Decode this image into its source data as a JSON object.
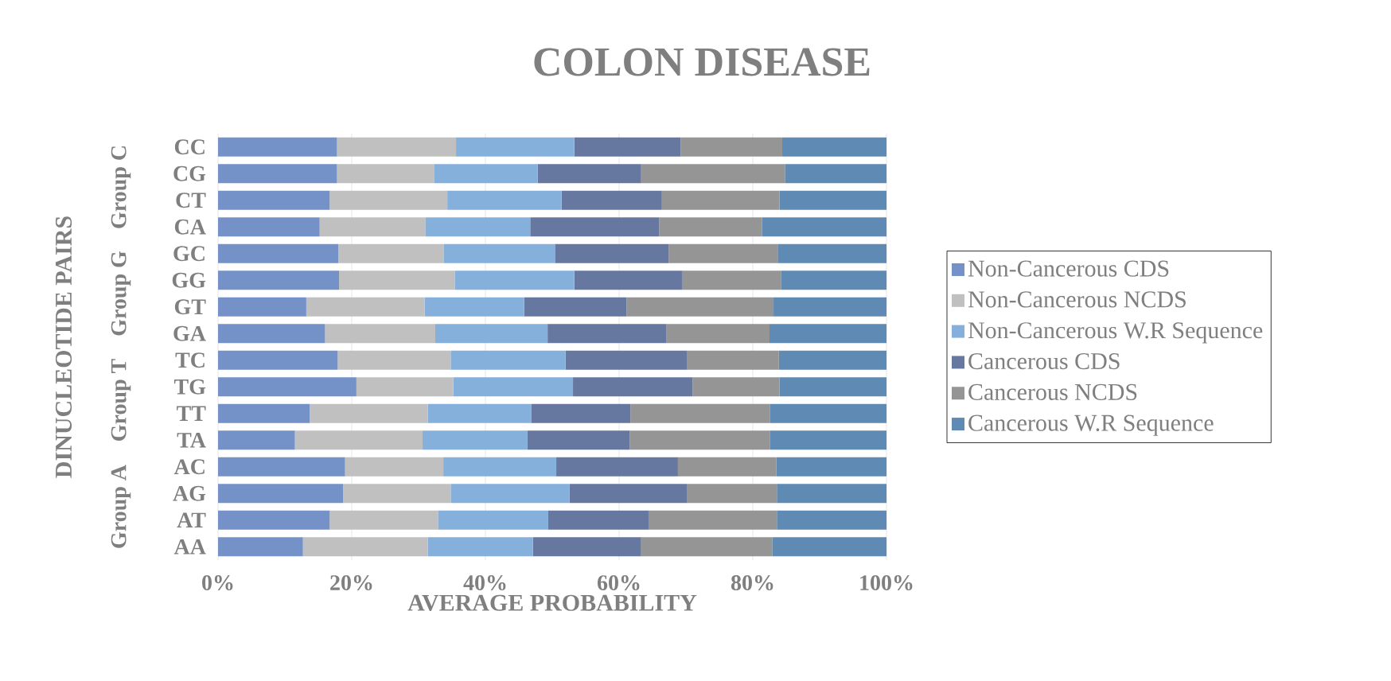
{
  "chart_data": {
    "type": "bar",
    "orientation": "horizontal",
    "stacked": true,
    "title": "COLON DISEASE",
    "xlabel": "AVERAGE PROBABILITY",
    "ylabel": "DINUCLEOTIDE PAIRS",
    "categories": [
      "CC",
      "CG",
      "CT",
      "CA",
      "GC",
      "GG",
      "GT",
      "GA",
      "TC",
      "TG",
      "TT",
      "TA",
      "AC",
      "AG",
      "AT",
      "AA"
    ],
    "annotations": [
      "Group C",
      "Group G",
      "Group T",
      "Group A"
    ],
    "xlim": [
      0,
      100
    ],
    "xticks": [
      {
        "value": 0,
        "label": "0%"
      },
      {
        "value": 20,
        "label": "20%"
      },
      {
        "value": 40,
        "label": "40%"
      },
      {
        "value": 60,
        "label": "60%"
      },
      {
        "value": 80,
        "label": "80%"
      },
      {
        "value": 100,
        "label": "100%"
      }
    ],
    "grid": "x",
    "legend": "right",
    "series": [
      {
        "name": "Non-Cancerous CDS",
        "color": "#7592c8",
        "values": [
          17.8,
          17.8,
          16.7,
          15.2,
          18.0,
          18.1,
          13.2,
          16.0,
          17.9,
          20.7,
          13.7,
          11.5,
          19.0,
          18.7,
          16.7,
          12.7
        ]
      },
      {
        "name": "Non-Cancerous NCDS",
        "color": "#c0c0c0",
        "values": [
          17.8,
          14.5,
          17.6,
          15.8,
          15.8,
          17.3,
          17.7,
          16.5,
          16.9,
          14.5,
          17.7,
          19.1,
          14.7,
          16.1,
          16.2,
          18.7
        ]
      },
      {
        "name": "Non-Cancerous W.R Sequence",
        "color": "#86b0dc",
        "values": [
          17.7,
          15.5,
          17.1,
          15.7,
          16.6,
          17.9,
          14.9,
          16.8,
          17.2,
          17.9,
          15.5,
          15.7,
          16.9,
          17.8,
          16.5,
          15.7
        ]
      },
      {
        "name": "Cancerous CDS",
        "color": "#6677a0",
        "values": [
          15.9,
          15.5,
          15.0,
          19.3,
          17.0,
          16.1,
          15.3,
          17.8,
          18.2,
          17.9,
          14.8,
          15.3,
          18.2,
          17.6,
          15.0,
          16.2
        ]
      },
      {
        "name": "Cancerous NCDS",
        "color": "#959595",
        "values": [
          15.2,
          21.5,
          17.6,
          15.4,
          16.4,
          14.8,
          22.0,
          15.4,
          13.7,
          13.0,
          20.9,
          21.0,
          14.7,
          13.4,
          19.2,
          19.6
        ]
      },
      {
        "name": "Cancerous W.R Sequence",
        "color": "#5f8ab3",
        "values": [
          15.6,
          15.2,
          16.0,
          18.6,
          16.2,
          15.8,
          16.9,
          17.5,
          16.1,
          16.0,
          17.4,
          17.4,
          16.5,
          16.4,
          16.4,
          17.1
        ]
      }
    ]
  }
}
